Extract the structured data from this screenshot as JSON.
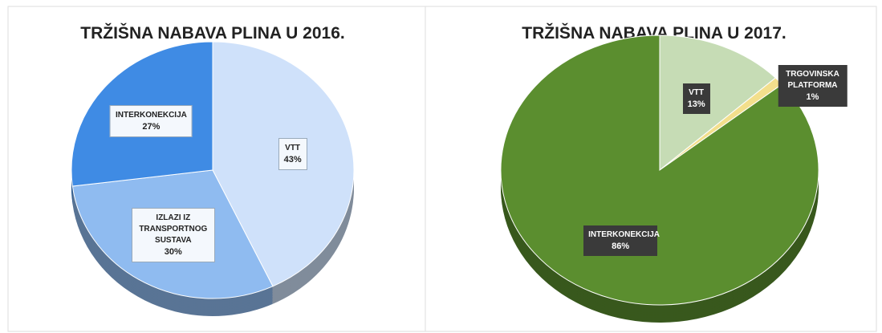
{
  "chart_data": [
    {
      "type": "pie",
      "title": "TRŽIŠNA NABAVA PLINA U 2016.",
      "categories": [
        "VTT",
        "IZLAZI IZ TRANSPORTNOG SUSTAVA",
        "INTERKONEKCIJA"
      ],
      "values": [
        43,
        30,
        27
      ],
      "value_labels": [
        "43%",
        "30%",
        "27%"
      ],
      "colors": [
        "#cfe1fa",
        "#8fbbf0",
        "#3f8be4"
      ]
    },
    {
      "type": "pie",
      "title": "TRŽIŠNA NABAVA PLINA U 2017.",
      "categories": [
        "VTT",
        "TRGOVINSKA PLATFORMA",
        "INTERKONEKCIJA"
      ],
      "values": [
        13,
        1,
        86
      ],
      "value_labels": [
        "13%",
        "1%",
        "86%"
      ],
      "colors": [
        "#c6dcb5",
        "#f3df8c",
        "#5b8e2f"
      ]
    }
  ]
}
